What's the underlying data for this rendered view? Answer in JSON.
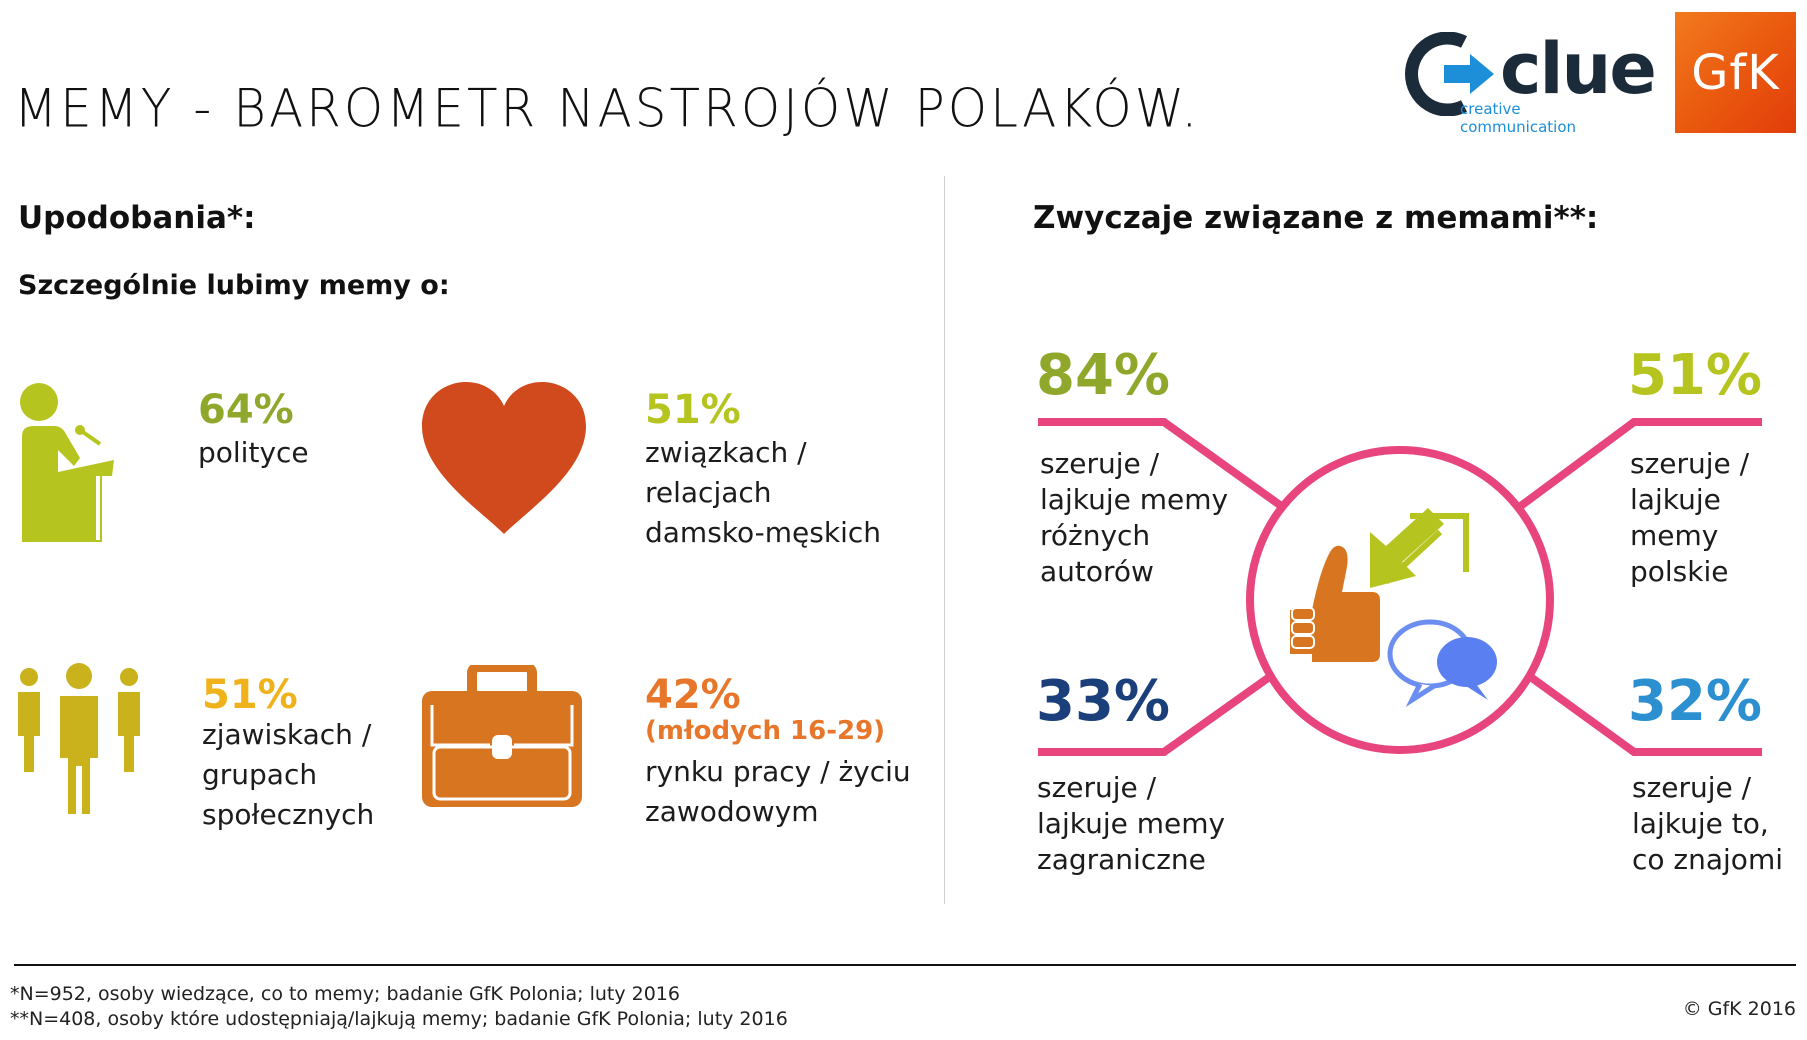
{
  "title": "MEMY - BAROMETR NASTROJÓW POLAKÓW.",
  "logos": {
    "clue_name": "clue",
    "clue_tagline": "creative communication",
    "gfk": "GfK"
  },
  "left": {
    "heading": "Upodobania*:",
    "subheading": "Szczególnie lubimy memy o:",
    "items": [
      {
        "icon": "speaker-podium-icon",
        "percent": "64%",
        "note": "",
        "label": "polityce",
        "color": "#8fa82b"
      },
      {
        "icon": "heart-icon",
        "percent": "51%",
        "note": "",
        "label": "związkach /\nrelacjach\ndamsko-męskich",
        "color": "#b5c41e"
      },
      {
        "icon": "group-people-icon",
        "percent": "51%",
        "note": "",
        "label": "zjawiskach /\ngrupach\nspołecznych",
        "color": "#f0b21a"
      },
      {
        "icon": "briefcase-icon",
        "percent": "42%",
        "note": "(młodych 16-29)",
        "label": "rynku pracy / życiu\nzawodowym",
        "color": "#e8762a"
      }
    ]
  },
  "right": {
    "heading": "Zwyczaje związane z memami**:",
    "items": [
      {
        "percent": "84%",
        "label": "szeruje /\nlajkuje memy\nróżnych\nautorów",
        "color": "#8fa82b"
      },
      {
        "percent": "51%",
        "label": "szeruje /\nlajkuje memy\npolskie",
        "color": "#b5c41e"
      },
      {
        "percent": "33%",
        "label": "szeruje /\nlajkuje memy\nzagraniczne",
        "color": "#1b3f7a"
      },
      {
        "percent": "32%",
        "label": "szeruje /\nlajkuje to,\nco znajomi",
        "color": "#2b8fd0"
      }
    ],
    "connector_color": "#e8457f"
  },
  "footer": {
    "note1": "*N=952, osoby wiedzące, co to memy;  badanie GfK Polonia; luty 2016",
    "note2": "**N=408, osoby które udostępniają/lajkują memy;  badanie GfK Polonia; luty 2016",
    "copyright": "© GfK 2016"
  }
}
